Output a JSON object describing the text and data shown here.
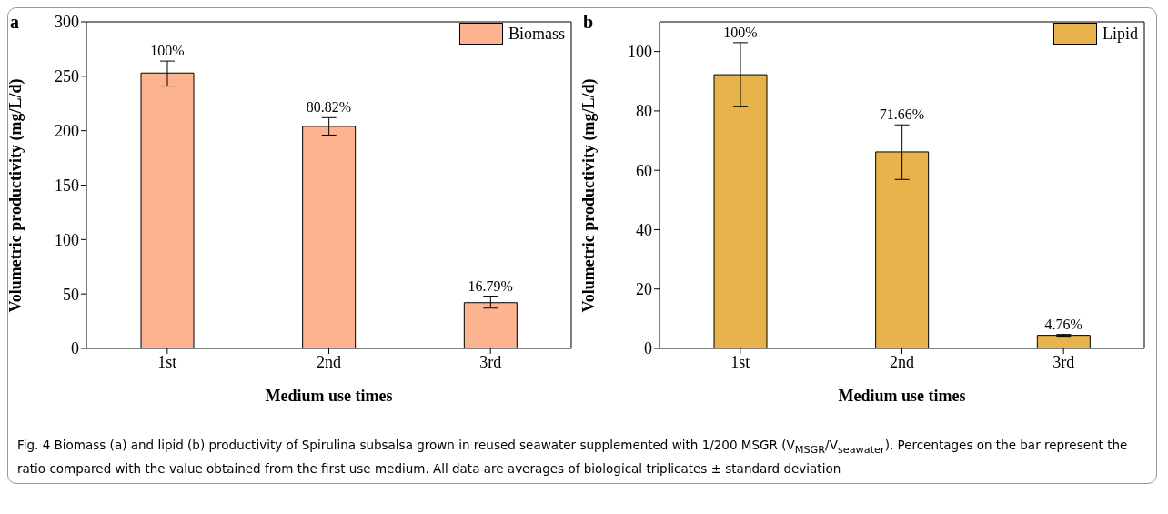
{
  "chart_data": [
    {
      "type": "bar",
      "title": "a",
      "xlabel": "Medium use times",
      "ylabel": "Volumetric productivity (mg/L/d)",
      "categories": [
        "1st",
        "2nd",
        "3rd"
      ],
      "series": [
        {
          "name": "Biomass",
          "color": "#fbb48f",
          "values": [
            253,
            204,
            42
          ],
          "errors": [
            [
              241,
              264
            ],
            [
              196,
              212
            ],
            [
              37,
              48
            ]
          ]
        }
      ],
      "ylim": [
        0,
        300
      ],
      "yticks": [
        0,
        50,
        100,
        150,
        200,
        250,
        300
      ],
      "legend": "top right",
      "annotations": [
        {
          "text": "100%",
          "x": "1st",
          "y": 264
        },
        {
          "text": "80.82%",
          "x": "2nd",
          "y": 212
        },
        {
          "text": "16.79%",
          "x": "3rd",
          "y": 48
        },
        "Fig. 4 Biomass (a) and lipid (b) productivity of Spirulina subsalsa grown in reused seawater supplemented with 1/200 MSGR (V$_{MSGR}$/V$_{seawater}$). Percentages on the bar represent the ratio compared with the value obtained from the first use medium. All data are averages of biological triplicates ± standard deviation"
      ]
    },
    {
      "type": "bar",
      "title": "b",
      "xlabel": "Medium use times",
      "ylabel": "Volumetric productivity (mg/L/d)",
      "categories": [
        "1st",
        "2nd",
        "3rd"
      ],
      "series": [
        {
          "name": "Lipid",
          "color": "#e8b34a",
          "values": [
            92.2,
            66.2,
            4.4
          ],
          "errors": [
            [
              81.4,
              103
            ],
            [
              56.9,
              75.3
            ],
            [
              4.1,
              4.7
            ]
          ]
        }
      ],
      "ylim": [
        0,
        110
      ],
      "yticks": [
        0,
        20,
        40,
        60,
        80,
        100
      ],
      "legend": "top right",
      "annotations": [
        {
          "text": "100%",
          "x": "1st",
          "y": 103
        },
        {
          "text": "71.66%",
          "x": "2nd",
          "y": 75.3
        },
        {
          "text": "4.76%",
          "x": "3rd",
          "y": 4.7
        }
      ]
    }
  ]
}
